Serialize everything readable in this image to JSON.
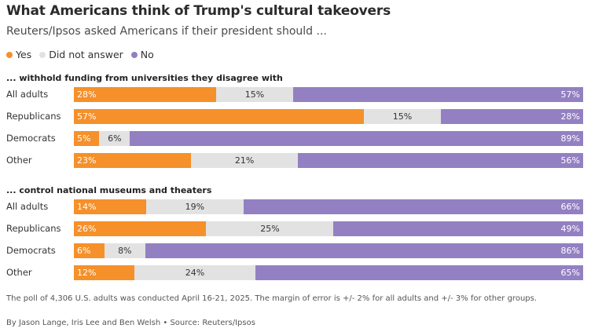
{
  "title": "What Americans think of Trump's cultural takeovers",
  "subtitle": "Reuters/Ipsos asked Americans if their president should ...",
  "legend": [
    {
      "label": "Yes",
      "color": "#f5902a"
    },
    {
      "label": "Did not answer",
      "color": "#e2e2e2"
    },
    {
      "label": "No",
      "color": "#9380c2"
    }
  ],
  "chart_data": {
    "type": "bar",
    "stacked": true,
    "orientation": "horizontal",
    "series_names": [
      "Yes",
      "Did not answer",
      "No"
    ],
    "colors": {
      "yes": "#f5902a",
      "na": "#e2e2e2",
      "no": "#9380c2"
    },
    "legend_position": "top-left",
    "panels": [
      {
        "title": "... withhold funding from universities they disagree with",
        "rows": [
          {
            "label": "All adults",
            "yes": 28,
            "na": 15,
            "no": 57
          },
          {
            "label": "Republicans",
            "yes": 57,
            "na": 15,
            "no": 28
          },
          {
            "label": "Democrats",
            "yes": 5,
            "na": 6,
            "no": 89
          },
          {
            "label": "Other",
            "yes": 23,
            "na": 21,
            "no": 56
          }
        ]
      },
      {
        "title": "... control national museums and theaters",
        "rows": [
          {
            "label": "All adults",
            "yes": 14,
            "na": 19,
            "no": 66
          },
          {
            "label": "Republicans",
            "yes": 26,
            "na": 25,
            "no": 49
          },
          {
            "label": "Democrats",
            "yes": 6,
            "na": 8,
            "no": 86
          },
          {
            "label": "Other",
            "yes": 12,
            "na": 24,
            "no": 65
          }
        ]
      }
    ]
  },
  "footnote": "The poll of 4,306 U.S. adults was conducted April 16-21, 2025. The margin of error is +/- 2% for all adults and +/- 3% for other groups.",
  "byline": "By Jason Lange, Iris Lee and Ben Welsh • Source: Reuters/Ipsos"
}
